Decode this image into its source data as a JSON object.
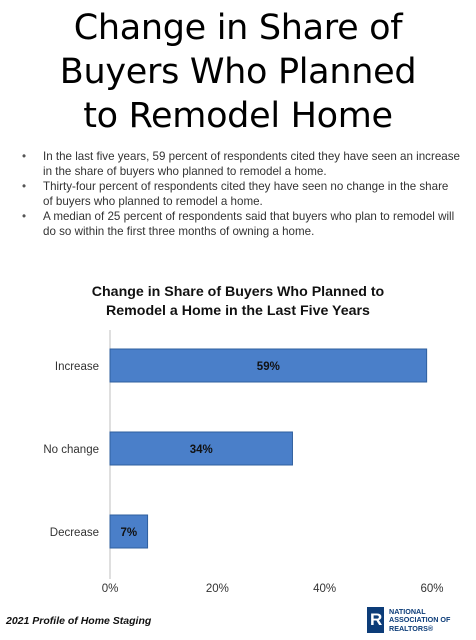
{
  "page": {
    "title_lines": [
      "Change in Share of",
      "Buyers Who Planned",
      "to Remodel Home"
    ],
    "bullets": [
      "In the last five years, 59 percent of respondents cited they have seen an increase in the share of buyers who planned to remodel a home.",
      "Thirty-four percent of respondents cited they have seen no change in the share of buyers who planned to remodel a home.",
      "A median of 25 percent of respondents said that buyers who plan to remodel will do so within the first three months of owning a home."
    ],
    "footer": "2021 Profile of Home Staging",
    "logo_lines": [
      "NATIONAL",
      "ASSOCIATION OF",
      "REALTORS®"
    ]
  },
  "chart_data": {
    "type": "bar",
    "orientation": "horizontal",
    "title_lines": [
      "Change in Share of Buyers Who Planned to",
      "Remodel a Home in the Last Five Years"
    ],
    "categories": [
      "Increase",
      "No change",
      "Decrease"
    ],
    "values": [
      59,
      34,
      7
    ],
    "data_labels": [
      "59%",
      "34%",
      "7%"
    ],
    "xlim": [
      0,
      60
    ],
    "xticks": [
      0,
      20,
      40,
      60
    ],
    "xtick_labels": [
      "0%",
      "20%",
      "40%",
      "60%"
    ],
    "grid": false,
    "bar_color": "#4a7fc9",
    "bar_edge_color": "#2f5f9e"
  }
}
